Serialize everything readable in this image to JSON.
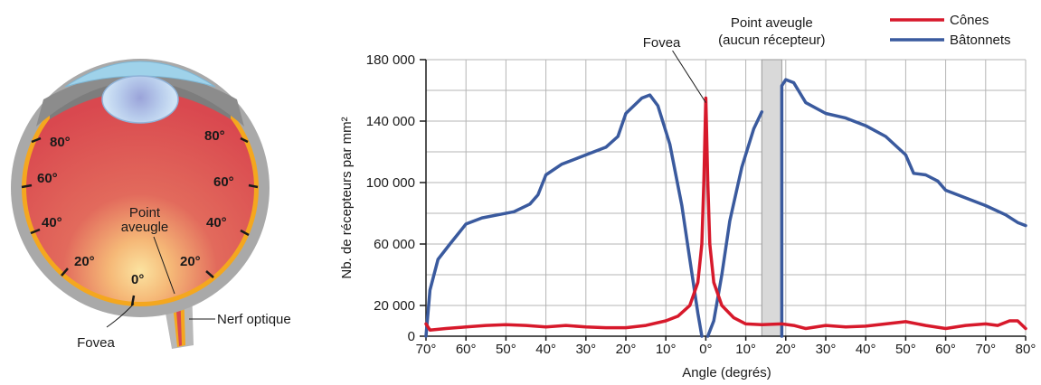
{
  "eye_diagram": {
    "angle_labels_left": [
      "80°",
      "60°",
      "40°",
      "20°"
    ],
    "angle_labels_right": [
      "80°",
      "60°",
      "40°",
      "20°"
    ],
    "center_label": "0°",
    "blind_spot_label_line1": "Point",
    "blind_spot_label_line2": "aveugle",
    "fovea_label": "Fovea",
    "optic_nerve_label": "Nerf optique"
  },
  "chart_data": {
    "type": "line",
    "ylabel": "Nb. de récepteurs par mm²",
    "xlabel": "Angle (degrés)",
    "ylim": [
      0,
      180000
    ],
    "xlim": [
      -70,
      80
    ],
    "y_ticks": [
      {
        "value": 0,
        "label": "0"
      },
      {
        "value": 20000,
        "label": "20 000"
      },
      {
        "value": 60000,
        "label": "60 000"
      },
      {
        "value": 100000,
        "label": "100 000"
      },
      {
        "value": 140000,
        "label": "140 000"
      },
      {
        "value": 180000,
        "label": "180 000"
      }
    ],
    "x_ticks": [
      {
        "value": -70,
        "label": "70°"
      },
      {
        "value": -60,
        "label": "60°"
      },
      {
        "value": -50,
        "label": "50°"
      },
      {
        "value": -40,
        "label": "40°"
      },
      {
        "value": -30,
        "label": "30°"
      },
      {
        "value": -20,
        "label": "20°"
      },
      {
        "value": -10,
        "label": "10°"
      },
      {
        "value": 0,
        "label": "0°"
      },
      {
        "value": 10,
        "label": "10°"
      },
      {
        "value": 20,
        "label": "20°"
      },
      {
        "value": 30,
        "label": "30°"
      },
      {
        "value": 40,
        "label": "40°"
      },
      {
        "value": 50,
        "label": "50°"
      },
      {
        "value": 60,
        "label": "60°"
      },
      {
        "value": 70,
        "label": "70°"
      },
      {
        "value": 80,
        "label": "80°"
      }
    ],
    "grid": true,
    "legend_position": "top-right",
    "blind_spot_range": [
      14,
      19
    ],
    "annotations": {
      "fovea": "Fovea",
      "blind_spot_line1": "Point aveugle",
      "blind_spot_line2": "(aucun récepteur)"
    },
    "series": [
      {
        "name": "Cônes",
        "color": "#d7192b",
        "segments": [
          [
            [
              -70,
              8000
            ],
            [
              -69,
              4000
            ],
            [
              -65,
              5000
            ],
            [
              -60,
              6000
            ],
            [
              -55,
              7000
            ],
            [
              -50,
              7500
            ],
            [
              -45,
              7000
            ],
            [
              -40,
              6000
            ],
            [
              -35,
              7000
            ],
            [
              -30,
              6000
            ],
            [
              -25,
              5500
            ],
            [
              -20,
              5500
            ],
            [
              -15,
              7000
            ],
            [
              -10,
              10000
            ],
            [
              -7,
              13000
            ],
            [
              -4,
              20000
            ],
            [
              -2,
              35000
            ],
            [
              -1,
              60000
            ],
            [
              -0.5,
              100000
            ],
            [
              0,
              155000
            ],
            [
              0.5,
              100000
            ],
            [
              1,
              60000
            ],
            [
              2,
              35000
            ],
            [
              4,
              20000
            ],
            [
              7,
              12000
            ],
            [
              10,
              8000
            ],
            [
              14,
              7500
            ],
            [
              19,
              8000
            ],
            [
              22,
              7000
            ],
            [
              25,
              5000
            ],
            [
              30,
              7000
            ],
            [
              35,
              6000
            ],
            [
              40,
              6500
            ],
            [
              45,
              8000
            ],
            [
              50,
              9500
            ],
            [
              55,
              7000
            ],
            [
              60,
              5000
            ],
            [
              65,
              7000
            ],
            [
              70,
              8000
            ],
            [
              73,
              7000
            ],
            [
              76,
              10000
            ],
            [
              78,
              10000
            ],
            [
              80,
              5000
            ]
          ]
        ]
      },
      {
        "name": "Bâtonnets",
        "color": "#3a5a9e",
        "segments": [
          [
            [
              -70,
              0
            ],
            [
              -69,
              30000
            ],
            [
              -67,
              50000
            ],
            [
              -64,
              60000
            ],
            [
              -60,
              73000
            ],
            [
              -56,
              77000
            ],
            [
              -52,
              79000
            ],
            [
              -48,
              81000
            ],
            [
              -44,
              86000
            ],
            [
              -42,
              92000
            ],
            [
              -40,
              105000
            ],
            [
              -36,
              112000
            ],
            [
              -30,
              118000
            ],
            [
              -25,
              123000
            ],
            [
              -22,
              130000
            ],
            [
              -20,
              145000
            ],
            [
              -16,
              155000
            ],
            [
              -14,
              157000
            ],
            [
              -12,
              150000
            ],
            [
              -9,
              125000
            ],
            [
              -6,
              85000
            ],
            [
              -4,
              50000
            ],
            [
              -2,
              15000
            ],
            [
              -1,
              0
            ]
          ],
          [
            [
              0.5,
              0
            ],
            [
              2,
              10000
            ],
            [
              4,
              40000
            ],
            [
              6,
              75000
            ],
            [
              9,
              110000
            ],
            [
              12,
              135000
            ],
            [
              14,
              146000
            ]
          ],
          [
            [
              19,
              0
            ],
            [
              19,
              163000
            ],
            [
              20,
              167000
            ],
            [
              22,
              165000
            ],
            [
              25,
              152000
            ],
            [
              30,
              145000
            ],
            [
              35,
              142000
            ],
            [
              40,
              137000
            ],
            [
              45,
              130000
            ],
            [
              50,
              118000
            ],
            [
              52,
              106000
            ],
            [
              55,
              105000
            ],
            [
              58,
              101000
            ],
            [
              60,
              95000
            ],
            [
              65,
              90000
            ],
            [
              70,
              85000
            ],
            [
              75,
              79000
            ],
            [
              78,
              74000
            ],
            [
              80,
              72000
            ]
          ]
        ]
      }
    ]
  }
}
